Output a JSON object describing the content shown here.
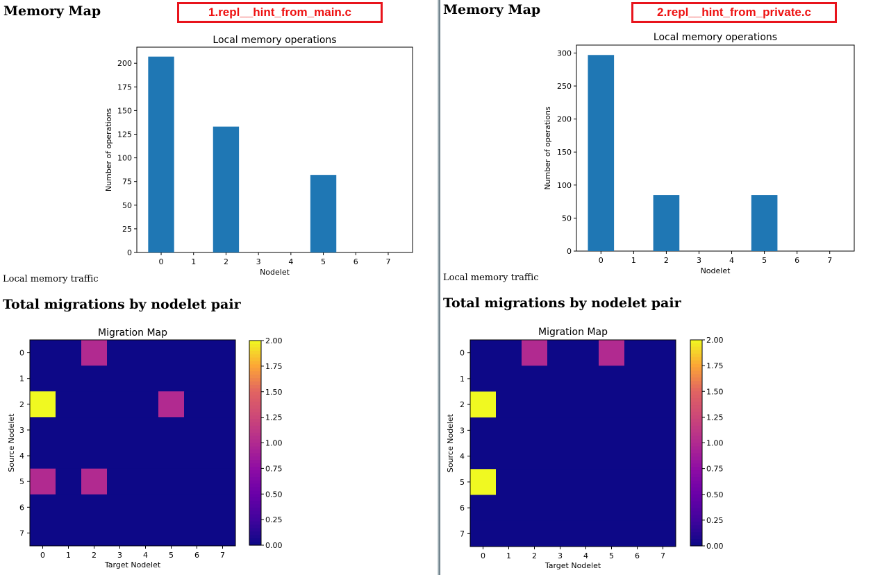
{
  "panels": [
    {
      "heading": "Memory Map",
      "tag_label": "1.repl__hint_from_main.c",
      "traffic_label": "Local memory traffic",
      "section_heading": "Total migrations by nodelet pair"
    },
    {
      "heading": "Memory Map",
      "tag_label": "2.repl__hint_from_private.c",
      "traffic_label": "Local memory traffic",
      "section_heading": "Total migrations by nodelet pair"
    }
  ],
  "chart_data": [
    {
      "type": "bar",
      "title": "Local memory operations",
      "xlabel": "Nodelet",
      "ylabel": "Number of operations",
      "categories": [
        "0",
        "1",
        "2",
        "3",
        "4",
        "5",
        "6",
        "7"
      ],
      "values": [
        207,
        0,
        133,
        0,
        0,
        82,
        0,
        0
      ],
      "ylim": [
        0,
        217
      ],
      "yticks": [
        0,
        25,
        50,
        75,
        100,
        125,
        150,
        175,
        200
      ],
      "bar_color": "#1f77b4"
    },
    {
      "type": "heatmap",
      "title": "Migration Map",
      "xlabel": "Target Nodelet",
      "ylabel": "Source Nodelet",
      "x": [
        "0",
        "1",
        "2",
        "3",
        "4",
        "5",
        "6",
        "7"
      ],
      "y": [
        "0",
        "1",
        "2",
        "3",
        "4",
        "5",
        "6",
        "7"
      ],
      "values": [
        [
          0,
          0,
          1,
          0,
          0,
          0,
          0,
          0
        ],
        [
          0,
          0,
          0,
          0,
          0,
          0,
          0,
          0
        ],
        [
          2,
          0,
          0,
          0,
          0,
          1,
          0,
          0
        ],
        [
          0,
          0,
          0,
          0,
          0,
          0,
          0,
          0
        ],
        [
          0,
          0,
          0,
          0,
          0,
          0,
          0,
          0
        ],
        [
          1,
          0,
          1,
          0,
          0,
          0,
          0,
          0
        ],
        [
          0,
          0,
          0,
          0,
          0,
          0,
          0,
          0
        ],
        [
          0,
          0,
          0,
          0,
          0,
          0,
          0,
          0
        ]
      ],
      "colormap": "plasma",
      "colorbar_range": [
        0,
        2
      ],
      "colorbar_ticks": [
        "0.00",
        "0.25",
        "0.50",
        "0.75",
        "1.00",
        "1.25",
        "1.50",
        "1.75",
        "2.00"
      ]
    },
    {
      "type": "bar",
      "title": "Local memory operations",
      "xlabel": "Nodelet",
      "ylabel": "Number of operations",
      "categories": [
        "0",
        "1",
        "2",
        "3",
        "4",
        "5",
        "6",
        "7"
      ],
      "values": [
        297,
        0,
        85,
        0,
        0,
        85,
        0,
        0
      ],
      "ylim": [
        0,
        312
      ],
      "yticks": [
        0,
        50,
        100,
        150,
        200,
        250,
        300
      ],
      "bar_color": "#1f77b4"
    },
    {
      "type": "heatmap",
      "title": "Migration Map",
      "xlabel": "Target Nodelet",
      "ylabel": "Source Nodelet",
      "x": [
        "0",
        "1",
        "2",
        "3",
        "4",
        "5",
        "6",
        "7"
      ],
      "y": [
        "0",
        "1",
        "2",
        "3",
        "4",
        "5",
        "6",
        "7"
      ],
      "values": [
        [
          0,
          0,
          1,
          0,
          0,
          1,
          0,
          0
        ],
        [
          0,
          0,
          0,
          0,
          0,
          0,
          0,
          0
        ],
        [
          2,
          0,
          0,
          0,
          0,
          0,
          0,
          0
        ],
        [
          0,
          0,
          0,
          0,
          0,
          0,
          0,
          0
        ],
        [
          0,
          0,
          0,
          0,
          0,
          0,
          0,
          0
        ],
        [
          2,
          0,
          0,
          0,
          0,
          0,
          0,
          0
        ],
        [
          0,
          0,
          0,
          0,
          0,
          0,
          0,
          0
        ],
        [
          0,
          0,
          0,
          0,
          0,
          0,
          0,
          0
        ]
      ],
      "colormap": "plasma",
      "colorbar_range": [
        0,
        2
      ],
      "colorbar_ticks": [
        "0.00",
        "0.25",
        "0.50",
        "0.75",
        "1.00",
        "1.25",
        "1.50",
        "1.75",
        "2.00"
      ]
    }
  ]
}
